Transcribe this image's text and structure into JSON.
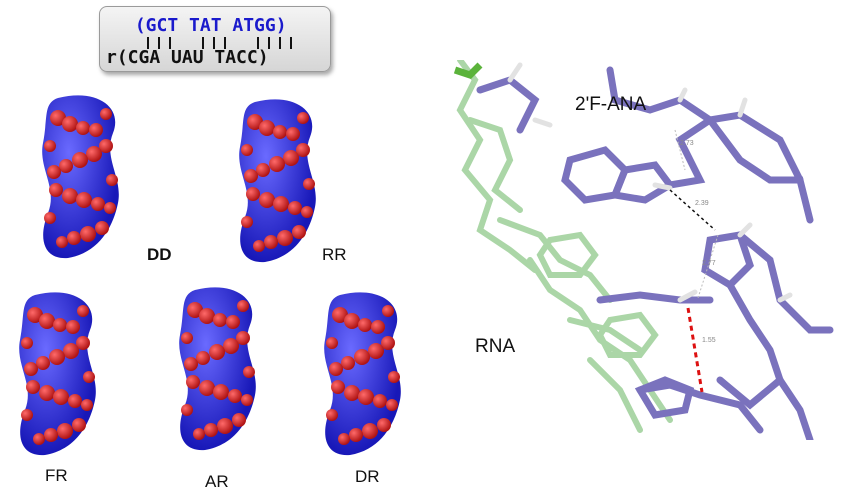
{
  "sequence": {
    "top": " (GCT TAT ATGG)",
    "bottom": "r(CGA UAU TACC)"
  },
  "duplexes": [
    {
      "label": "DD"
    },
    {
      "label": "RR"
    },
    {
      "label": "FR"
    },
    {
      "label": "AR"
    },
    {
      "label": "DR"
    }
  ],
  "structure": {
    "label_ana": "2'F-ANA",
    "label_rna": "RNA",
    "distances": [
      "2.73",
      "2.39",
      "2.77",
      "1.55"
    ]
  },
  "colors": {
    "blue": "#2a2ad8",
    "red": "#d42424",
    "purple": "#7a72bd",
    "green": "#8fc98a"
  }
}
